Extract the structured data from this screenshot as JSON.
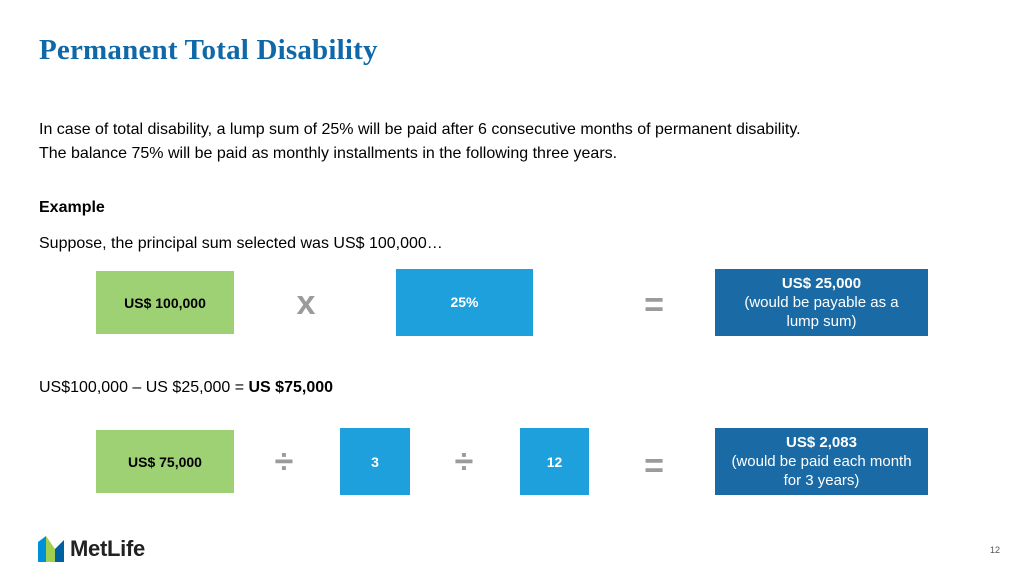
{
  "slide": {
    "title": "Permanent Total Disability",
    "intro_line1": "In case of total disability, a lump sum of 25% will be paid after 6 consecutive months of permanent disability.",
    "intro_line2": "The balance 75% will be paid as monthly installments in the following three years.",
    "example_heading": "Example",
    "suppose_text": "Suppose, the principal sum selected was US$ 100,000…",
    "page_number": "12"
  },
  "equation1": {
    "principal": "US$ 100,000",
    "multiply_op": "x",
    "percent": "25%",
    "equals_op": "=",
    "result_value": "US$ 25,000",
    "result_note_line1": "(would be payable as a",
    "result_note_line2": "lump sum)"
  },
  "calc_line": {
    "text": "US$100,000 – US $25,000 = ",
    "result": "US $75,000"
  },
  "equation2": {
    "balance": "US$ 75,000",
    "divide_op1": "÷",
    "years": "3",
    "divide_op2": "÷",
    "months": "12",
    "equals_op": "=",
    "result_value": "US$ 2,083",
    "result_note_line1": "(would be paid each month",
    "result_note_line2": "for 3 years)"
  },
  "branding": {
    "logo_text": "MetLife",
    "logo_colors": [
      "#0090da",
      "#a4ce4e",
      "#0061a0"
    ]
  }
}
